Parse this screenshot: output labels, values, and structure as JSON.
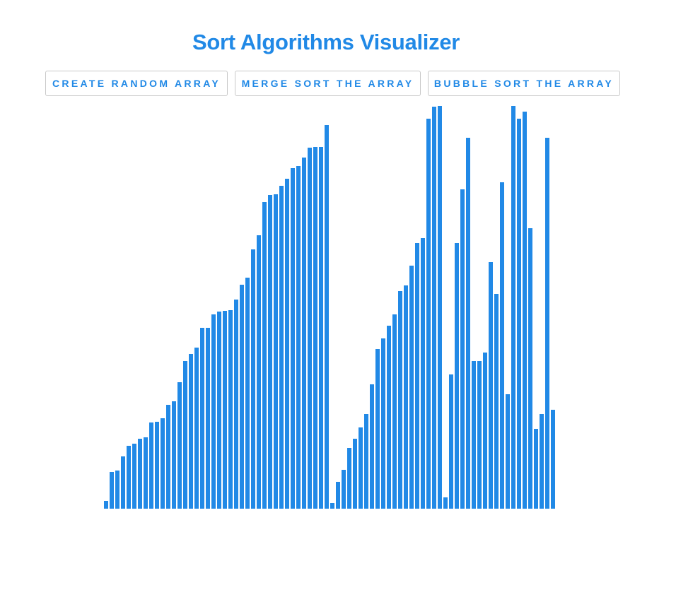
{
  "app": {
    "title": "Sort Algorithms Visualizer"
  },
  "buttons": {
    "random_label": "CREATE RANDOM ARRAY",
    "merge_label": "MERGE SORT THE ARRAY",
    "bubble_label": "BUBBLE SORT THE ARRAY"
  },
  "colors": {
    "accent": "#2189e6",
    "bar": "#2189e6"
  },
  "array": {
    "max_value": 485,
    "values": [
      9,
      44,
      46,
      63,
      76,
      78,
      84,
      86,
      104,
      105,
      109,
      125,
      129,
      152,
      178,
      186,
      194,
      218,
      218,
      234,
      237,
      238,
      239,
      252,
      270,
      278,
      312,
      329,
      369,
      378,
      379,
      389,
      397,
      410,
      413,
      423,
      435,
      436,
      436,
      462,
      7,
      32,
      47,
      73,
      84,
      98,
      114,
      150,
      192,
      205,
      220,
      234,
      262,
      269,
      293,
      320,
      326,
      470,
      484,
      485,
      14,
      162,
      320,
      385,
      447,
      178,
      178,
      188,
      297,
      259,
      393,
      138,
      485,
      470,
      478,
      338,
      96,
      114,
      447,
      119
    ]
  }
}
